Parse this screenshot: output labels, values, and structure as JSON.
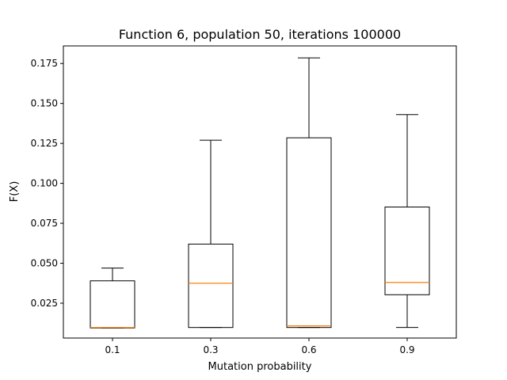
{
  "chart_data": {
    "type": "box",
    "title": "Function 6, population 50, iterations 100000",
    "xlabel": "Mutation probability",
    "ylabel": "F(X)",
    "ylim": [
      0.0032,
      0.186
    ],
    "yticks": [
      "0.025",
      "0.050",
      "0.075",
      "0.100",
      "0.125",
      "0.150",
      "0.175"
    ],
    "grid": false,
    "categories": [
      "0.1",
      "0.3",
      "0.6",
      "0.9"
    ],
    "boxes": [
      {
        "label": "0.1",
        "whisker_low": 0.0095,
        "q1": 0.0095,
        "median": 0.0098,
        "q3": 0.039,
        "whisker_high": 0.047
      },
      {
        "label": "0.3",
        "whisker_low": 0.0098,
        "q1": 0.0098,
        "median": 0.0375,
        "q3": 0.062,
        "whisker_high": 0.127
      },
      {
        "label": "0.6",
        "whisker_low": 0.0098,
        "q1": 0.0098,
        "median": 0.0108,
        "q3": 0.1285,
        "whisker_high": 0.1785
      },
      {
        "label": "0.9",
        "whisker_low": 0.0098,
        "q1": 0.0303,
        "median": 0.038,
        "q3": 0.0852,
        "whisker_high": 0.143
      }
    ],
    "colors": {
      "box": "#000000",
      "median": "#ff7f0e",
      "axes": "#000000"
    }
  }
}
